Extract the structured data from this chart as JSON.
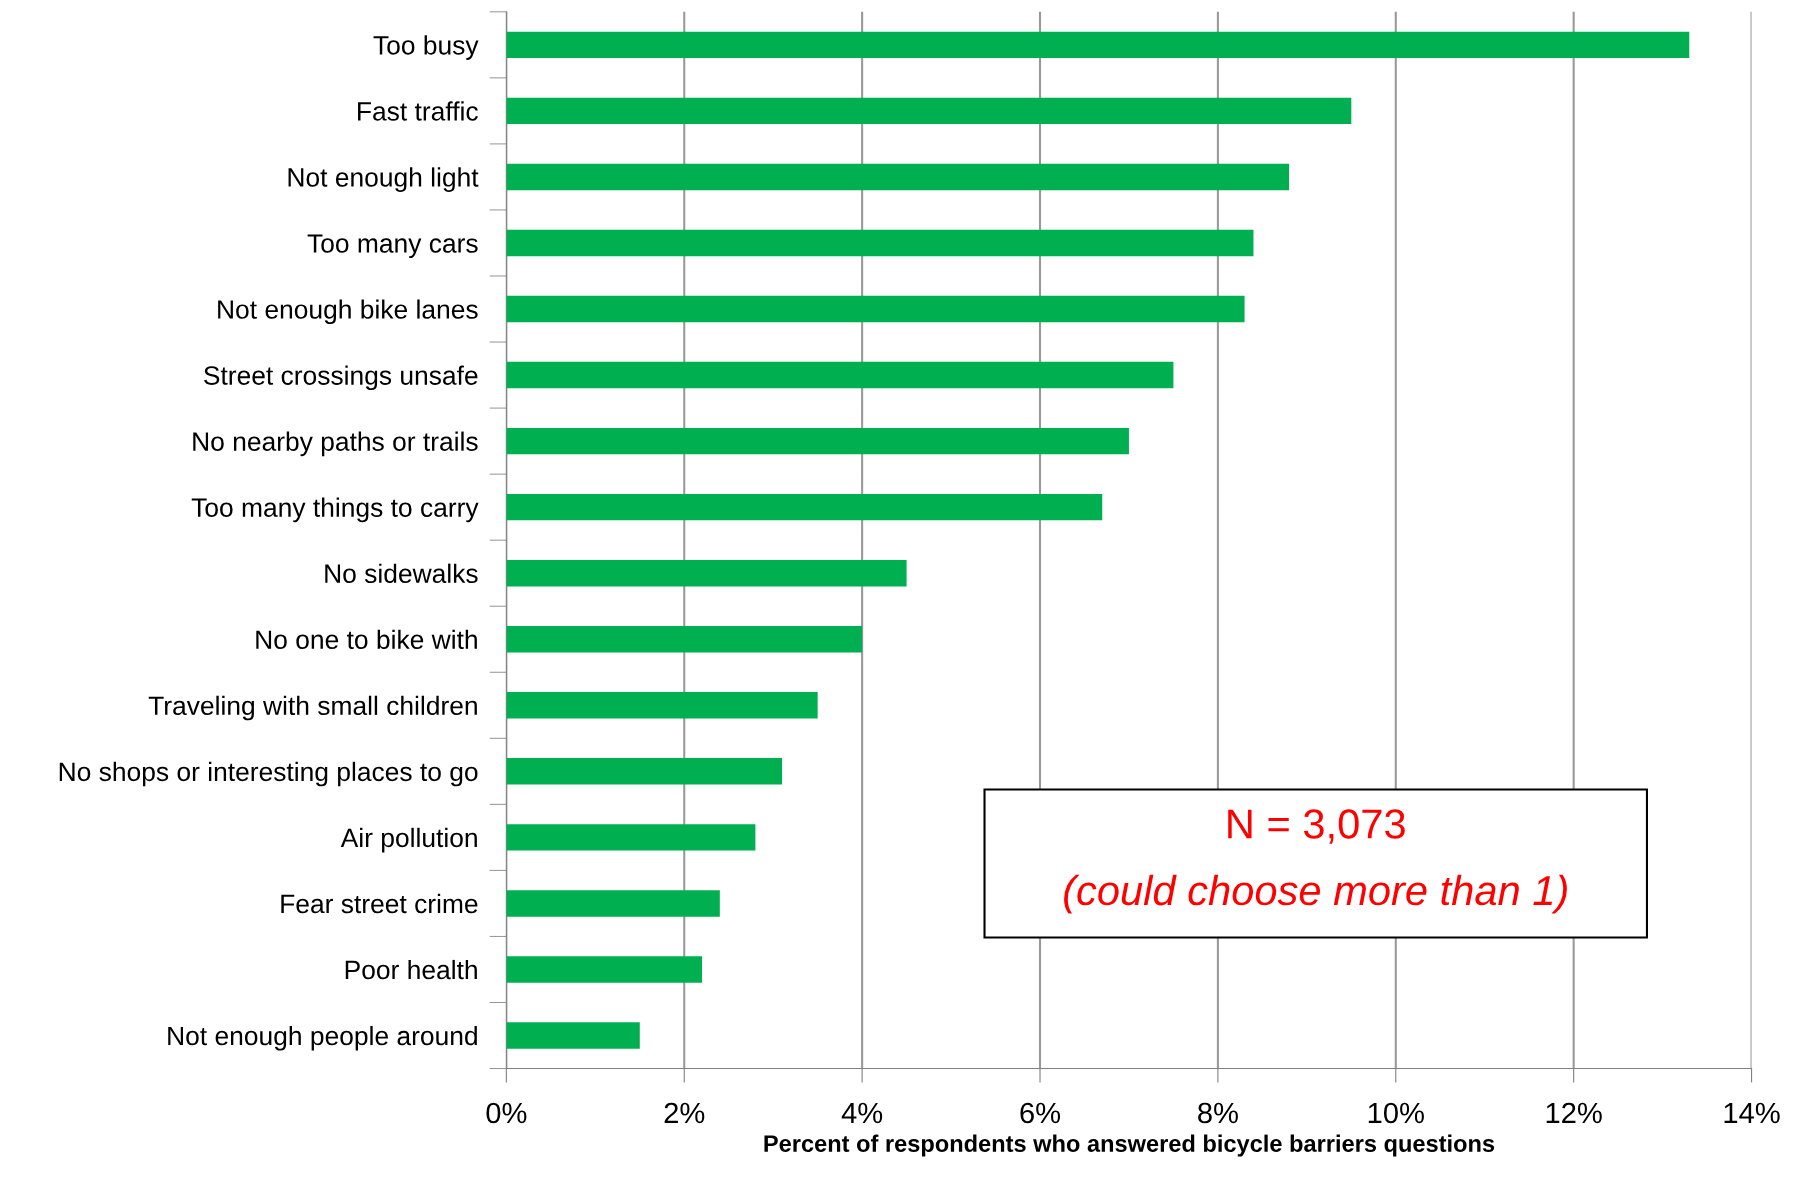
{
  "chart_data": {
    "type": "bar",
    "orientation": "horizontal",
    "categories": [
      "Too busy",
      "Fast traffic",
      "Not enough light",
      "Too many cars",
      "Not enough bike lanes",
      "Street crossings unsafe",
      "No nearby paths or trails",
      "Too many things to carry",
      "No sidewalks",
      "No one to bike with",
      "Traveling with small children",
      "No shops or interesting places to go",
      "Air pollution",
      "Fear street crime",
      "Poor health",
      "Not enough people around"
    ],
    "values": [
      13.3,
      9.5,
      8.8,
      8.4,
      8.3,
      7.5,
      7.0,
      6.7,
      4.5,
      4.0,
      3.5,
      3.1,
      2.8,
      2.4,
      2.2,
      1.5
    ],
    "color": "#00b050",
    "xlim": [
      0,
      14
    ],
    "xticks": [
      {
        "value": 0,
        "label": "0%"
      },
      {
        "value": 2,
        "label": "2%"
      },
      {
        "value": 4,
        "label": "4%"
      },
      {
        "value": 6,
        "label": "6%"
      },
      {
        "value": 8,
        "label": "8%"
      },
      {
        "value": 10,
        "label": "10%"
      },
      {
        "value": 12,
        "label": "12%"
      },
      {
        "value": 14,
        "label": "14%"
      }
    ],
    "xlabel": "Percent of respondents who answered bicycle barriers questions",
    "annotations": [
      "N = 3,073",
      "(could choose more than 1)"
    ],
    "grid": "x",
    "legend": false
  }
}
